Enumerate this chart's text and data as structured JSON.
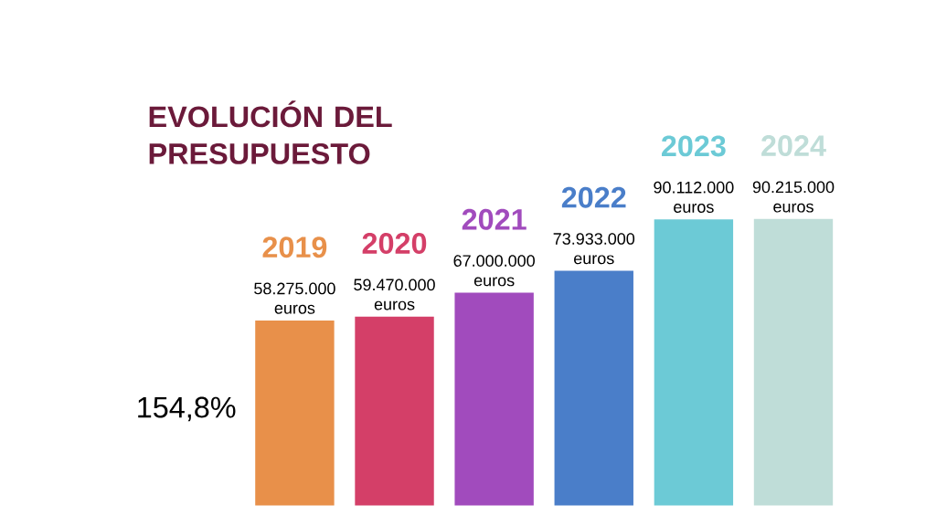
{
  "chart_data": {
    "type": "bar",
    "title": "EVOLUCIÓN DEL PRESUPUESTO",
    "categories": [
      "2019",
      "2020",
      "2021",
      "2022",
      "2023",
      "2024"
    ],
    "values": [
      58275000,
      59470000,
      67000000,
      73933000,
      90112000,
      90215000
    ],
    "colors": [
      "#e8904a",
      "#d43f68",
      "#a14bbd",
      "#4a7ec9",
      "#6ccad6",
      "#bfddd8"
    ],
    "value_labels": [
      "58.275.000 euros",
      "59.470.000 euros",
      "67.000.000 euros",
      "73.933.000 euros",
      "90.112.000 euros",
      "90.215.000 euros"
    ],
    "annotations": [
      "154,8%"
    ]
  }
}
